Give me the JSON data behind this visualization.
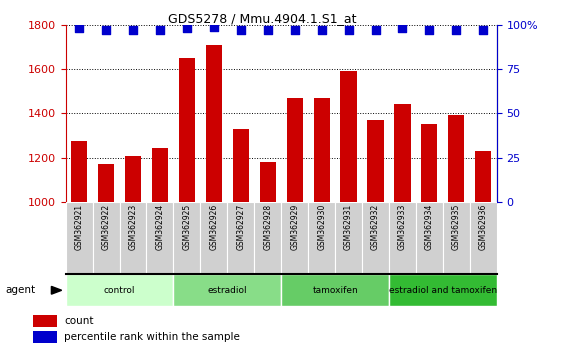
{
  "title": "GDS5278 / Mmu.4904.1.S1_at",
  "categories": [
    "GSM362921",
    "GSM362922",
    "GSM362923",
    "GSM362924",
    "GSM362925",
    "GSM362926",
    "GSM362927",
    "GSM362928",
    "GSM362929",
    "GSM362930",
    "GSM362931",
    "GSM362932",
    "GSM362933",
    "GSM362934",
    "GSM362935",
    "GSM362936"
  ],
  "bar_values": [
    1275,
    1170,
    1205,
    1245,
    1650,
    1710,
    1330,
    1180,
    1470,
    1470,
    1590,
    1370,
    1440,
    1350,
    1390,
    1230
  ],
  "percentile_values": [
    98,
    97,
    97,
    97,
    98,
    99,
    97,
    97,
    97,
    97,
    97,
    97,
    98,
    97,
    97,
    97
  ],
  "bar_color": "#CC0000",
  "dot_color": "#0000CC",
  "ylim_left": [
    1000,
    1800
  ],
  "ylim_right": [
    0,
    100
  ],
  "yticks_left": [
    1000,
    1200,
    1400,
    1600,
    1800
  ],
  "yticks_right": [
    0,
    25,
    50,
    75,
    100
  ],
  "groups": [
    {
      "label": "control",
      "start": 0,
      "end": 4,
      "color": "#ccffcc"
    },
    {
      "label": "estradiol",
      "start": 4,
      "end": 8,
      "color": "#88dd88"
    },
    {
      "label": "tamoxifen",
      "start": 8,
      "end": 12,
      "color": "#66cc66"
    },
    {
      "label": "estradiol and tamoxifen",
      "start": 12,
      "end": 16,
      "color": "#44bb44"
    }
  ],
  "agent_label": "agent",
  "legend_count_label": "count",
  "legend_pct_label": "percentile rank within the sample",
  "tick_color_left": "#CC0000",
  "tick_color_right": "#0000CC",
  "bar_width": 0.6,
  "dot_size": 35,
  "dot_marker": "s",
  "xtick_box_color": "#d0d0d0",
  "group_divider_color": "#000000"
}
